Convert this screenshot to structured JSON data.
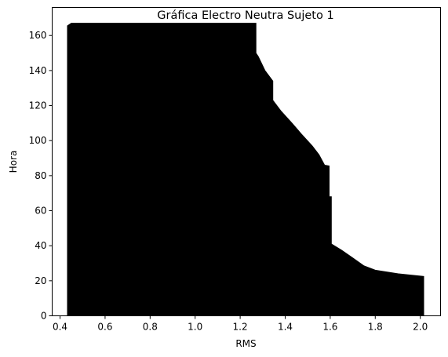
{
  "chart_data": {
    "type": "area",
    "title": "Gráfica Electro Neutra Sujeto 1",
    "xlabel": "RMS",
    "ylabel": "Hora",
    "xlim": [
      0.365,
      2.09
    ],
    "ylim": [
      0,
      176
    ],
    "xticks": [
      0.4,
      0.6,
      0.8,
      1.0,
      1.2,
      1.4,
      1.6,
      1.8,
      2.0
    ],
    "xtick_labels": [
      "0.4",
      "0.6",
      "0.8",
      "1.0",
      "1.2",
      "1.4",
      "1.6",
      "1.8",
      "2.0"
    ],
    "yticks": [
      0,
      20,
      40,
      60,
      80,
      100,
      120,
      140,
      160
    ],
    "ytick_labels": [
      "0",
      "20",
      "40",
      "60",
      "80",
      "100",
      "120",
      "140",
      "160"
    ],
    "grid": false,
    "legend": "none",
    "fill_color": "#000000",
    "series": [
      {
        "points": [
          [
            0.433,
            0
          ],
          [
            2.015,
            0
          ],
          [
            2.015,
            22.5
          ],
          [
            1.9,
            24
          ],
          [
            1.8,
            26
          ],
          [
            1.75,
            28.5
          ],
          [
            1.7,
            33
          ],
          [
            1.65,
            37.5
          ],
          [
            1.605,
            41
          ],
          [
            1.605,
            68
          ],
          [
            1.595,
            68
          ],
          [
            1.595,
            85.5
          ],
          [
            1.575,
            86
          ],
          [
            1.55,
            92
          ],
          [
            1.52,
            97
          ],
          [
            1.47,
            104
          ],
          [
            1.43,
            110
          ],
          [
            1.38,
            117
          ],
          [
            1.345,
            123
          ],
          [
            1.345,
            134
          ],
          [
            1.31,
            140
          ],
          [
            1.28,
            148
          ],
          [
            1.27,
            150
          ],
          [
            1.27,
            167
          ],
          [
            0.45,
            167
          ],
          [
            0.433,
            165.5
          ]
        ]
      }
    ]
  }
}
